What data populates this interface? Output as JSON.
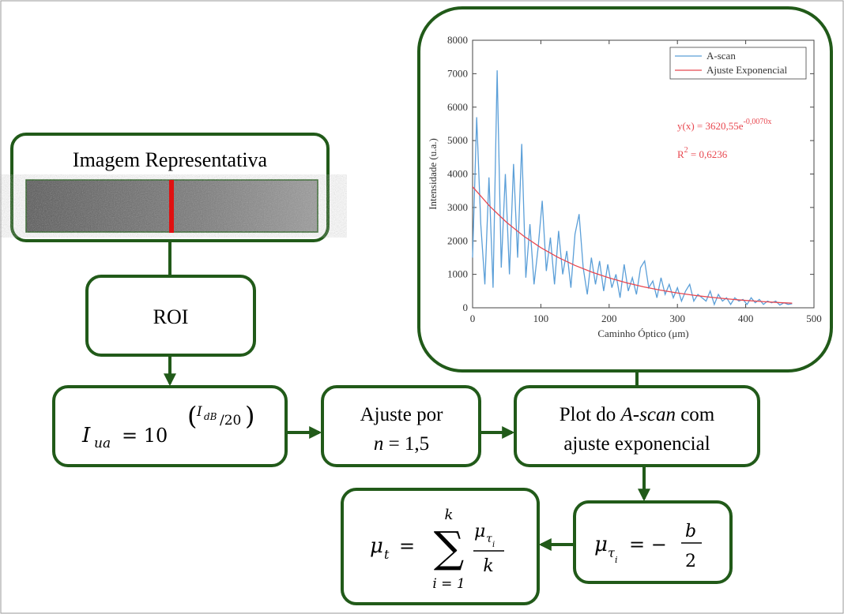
{
  "diagram": {
    "image_box": {
      "title": "Imagem Representativa"
    },
    "roi": {
      "label": "ROI"
    },
    "intensity": {
      "parts": [
        "I",
        "ua",
        "= 10",
        "I",
        "dB",
        "/20"
      ]
    },
    "refraction": {
      "line1": "Ajuste por",
      "n": "n",
      "rest": "= 1,5"
    },
    "plot": {
      "parts": [
        "Plot do ",
        "A-scan",
        " com",
        "ajuste exponencial"
      ]
    },
    "mu_ti": {
      "parts": [
        "μ",
        "τ",
        "i",
        "= −",
        "b",
        "2"
      ]
    },
    "mu_t": {
      "parts": [
        "μ",
        "t",
        "=",
        "∑",
        "k",
        "i = 1",
        "μ",
        "τ",
        "i",
        "k"
      ]
    }
  },
  "chart_data": {
    "type": "line",
    "x_label": "Caminho Óptico (μm)",
    "y_label": "Intensidade (u.a.)",
    "xlim": [
      0,
      500
    ],
    "ylim": [
      0,
      8000
    ],
    "xticks": [
      0,
      100,
      200,
      300,
      400,
      500
    ],
    "yticks": [
      0,
      1000,
      2000,
      3000,
      4000,
      5000,
      6000,
      7000,
      8000
    ],
    "grid": false,
    "legend": "upper right",
    "equation": {
      "base": "y(x) = 3620,55e",
      "exponent": "-0,0070x"
    },
    "r2": {
      "base": "R",
      "exponent": "2",
      "rest": " = 0,6236"
    },
    "series": [
      {
        "name": "A-scan",
        "color": "#5b9fd8",
        "x": [
          0,
          6,
          12,
          18,
          24,
          30,
          36,
          42,
          48,
          54,
          60,
          66,
          72,
          78,
          84,
          90,
          96,
          102,
          108,
          114,
          120,
          126,
          132,
          138,
          144,
          150,
          156,
          162,
          168,
          174,
          180,
          186,
          192,
          198,
          204,
          210,
          216,
          222,
          228,
          234,
          240,
          246,
          252,
          258,
          264,
          270,
          276,
          282,
          288,
          294,
          300,
          306,
          312,
          318,
          324,
          330,
          336,
          342,
          348,
          354,
          360,
          366,
          372,
          378,
          384,
          390,
          396,
          402,
          408,
          414,
          420,
          426,
          432,
          438,
          444,
          450,
          456,
          462,
          468
        ],
        "values": [
          1500,
          5700,
          2500,
          700,
          3900,
          600,
          7100,
          1200,
          4000,
          1000,
          4300,
          1500,
          4900,
          900,
          2500,
          700,
          1800,
          3200,
          1100,
          2100,
          700,
          2300,
          1000,
          1700,
          600,
          2200,
          2800,
          1200,
          400,
          1500,
          700,
          1400,
          500,
          1300,
          600,
          1000,
          300,
          1300,
          500,
          900,
          400,
          1200,
          1400,
          600,
          800,
          300,
          900,
          400,
          700,
          300,
          600,
          200,
          500,
          700,
          200,
          400,
          300,
          200,
          500,
          100,
          400,
          200,
          300,
          100,
          300,
          200,
          250,
          100,
          300,
          150,
          250,
          100,
          200,
          150,
          200,
          80,
          150,
          100,
          120
        ]
      },
      {
        "name": "Ajuste Exponencial",
        "color": "#e8474f",
        "x": [
          0,
          25,
          50,
          75,
          100,
          125,
          150,
          175,
          200,
          225,
          250,
          275,
          300,
          325,
          350,
          375,
          400,
          425,
          450,
          468
        ],
        "values": [
          3621,
          3040,
          2551,
          2142,
          1798,
          1509,
          1267,
          1064,
          893,
          750,
          629,
          528,
          443,
          372,
          312,
          262,
          220,
          185,
          155,
          137
        ]
      }
    ]
  }
}
